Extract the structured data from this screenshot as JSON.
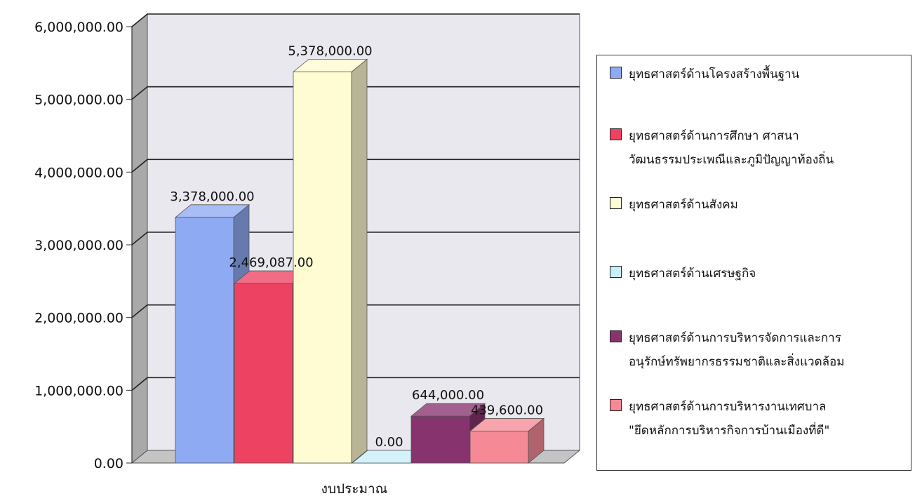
{
  "chart_data": {
    "type": "bar",
    "categories": [
      "งบประมาณ"
    ],
    "xlabel": "งบประมาณ",
    "ylim": [
      0,
      6000000
    ],
    "yticks": [
      "0.00",
      "1,000,000.00",
      "2,000,000.00",
      "3,000,000.00",
      "4,000,000.00",
      "5,000,000.00",
      "6,000,000.00"
    ],
    "grid": true,
    "legend_position": "right",
    "style": "3d-clustered-column",
    "series": [
      {
        "name": "ยุทธศาสตร์ด้านโครงสร้างพื้นฐาน",
        "values": [
          3378000
        ],
        "label": "3,378,000.00",
        "color": "#8eaaf2"
      },
      {
        "name": "ยุทธศาสตร์ด้านการศึกษา ศาสนา วัฒนธรรมประเพณีและภูมิปัญญาท้องถิ่น",
        "values": [
          2469087
        ],
        "label": "2,469,087.00",
        "color": "#ee4262"
      },
      {
        "name": "ยุทธศาสตร์ด้านสังคม",
        "values": [
          5378000
        ],
        "label": "5,378,000.00",
        "color": "#fffbd2"
      },
      {
        "name": "ยุทธศาสตร์ด้านเศรษฐกิจ",
        "values": [
          0
        ],
        "label": "0.00",
        "color": "#c8eef8"
      },
      {
        "name": "ยุทธศาสตร์ด้านการบริหารจัดการและการอนุรักษ์ทรัพยากรธรรมชาติและสิ่งแวดล้อม",
        "values": [
          644000
        ],
        "label": "644,000.00",
        "color": "#86336e"
      },
      {
        "name": "ยุทธศาสตร์ด้านการบริหารงานเทศบาล \"ยึดหลักการบริหารกิจการบ้านเมืองที่ดี\"",
        "values": [
          439600
        ],
        "label": "439,600.00",
        "color": "#f58a96"
      }
    ]
  },
  "legend": {
    "items": [
      {
        "lines": [
          "ยุทธศาสตร์ด้านโครงสร้างพื้นฐาน"
        ]
      },
      {
        "lines": [
          "ยุทธศาสตร์ด้านการศึกษา ศาสนา",
          "วัฒนธรรมประเพณีและภูมิปัญญาท้องถิ่น"
        ]
      },
      {
        "lines": [
          "ยุทธศาสตร์ด้านสังคม"
        ]
      },
      {
        "lines": [
          "ยุทธศาสตร์ด้านเศรษฐกิจ"
        ]
      },
      {
        "lines": [
          "ยุทธศาสตร์ด้านการบริหารจัดการและการ",
          "อนุรักษ์ทรัพยากรธรรมชาติและสิ่งแวดล้อม"
        ]
      },
      {
        "lines": [
          "ยุทธศาสตร์ด้านการบริหารงานเทศบาล",
          "\"ยึดหลักการบริหารกิจการบ้านเมืองที่ดี\""
        ]
      }
    ]
  }
}
